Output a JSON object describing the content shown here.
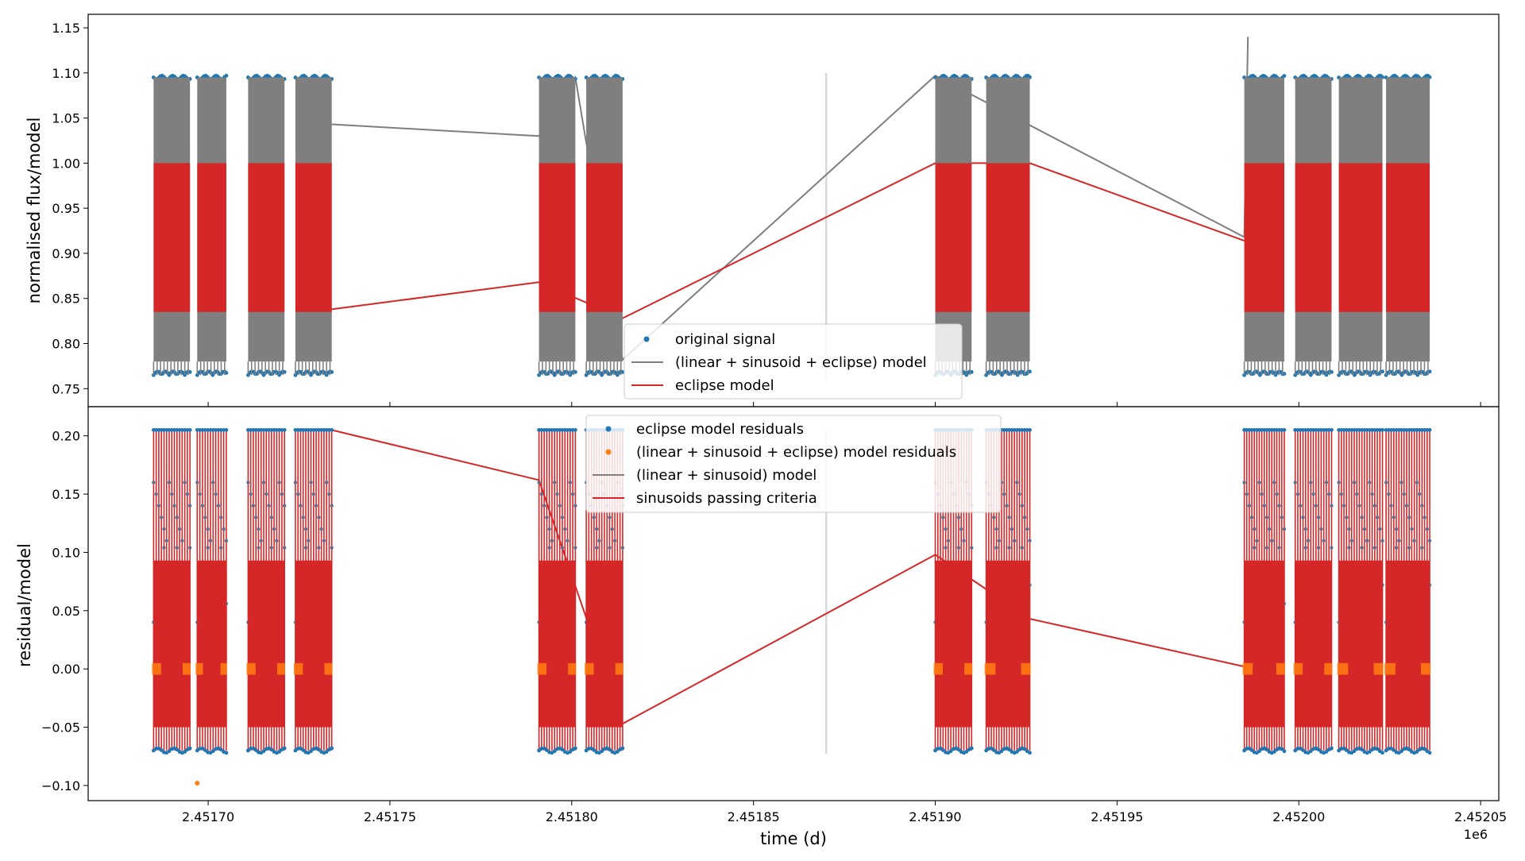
{
  "chart_data": [
    {
      "type": "scatter",
      "ylabel": "normalised flux/model",
      "ylim": [
        0.73,
        1.165
      ],
      "yticks": [
        "0.75",
        "0.80",
        "0.85",
        "0.90",
        "0.95",
        "1.00",
        "1.05",
        "1.10",
        "1.15"
      ],
      "ytick_values": [
        0.75,
        0.8,
        0.85,
        0.9,
        0.95,
        1.0,
        1.05,
        1.1,
        1.15
      ],
      "xlim": [
        2451667,
        2452055
      ],
      "grid": false,
      "legend_position": "bottom-center",
      "series": [
        {
          "name": "original signal",
          "kind": "points",
          "color": "#1f77b4",
          "bands": [
            [
              0.765,
              1.095
            ]
          ]
        },
        {
          "name": "(linear + sinusoid + eclipse) model",
          "kind": "line",
          "color": "#7f7f7f",
          "bands": [
            [
              0.78,
              1.095
            ]
          ]
        },
        {
          "name": "eclipse model",
          "kind": "line",
          "color": "#d62728",
          "bands": [
            [
              0.835,
              1.0
            ]
          ]
        }
      ],
      "vertical_line": {
        "x": 2451870,
        "color": "#d9d9d9"
      }
    },
    {
      "type": "scatter",
      "ylabel": "residual/model",
      "xlabel": "time (d)",
      "x_offset_label": "1e6",
      "ylim": [
        -0.113,
        0.225
      ],
      "yticks": [
        "−0.10",
        "−0.05",
        "0.00",
        "0.05",
        "0.10",
        "0.15",
        "0.20"
      ],
      "ytick_values": [
        -0.1,
        -0.05,
        0.0,
        0.05,
        0.1,
        0.15,
        0.2
      ],
      "xlim": [
        2451667,
        2452055
      ],
      "xticks": [
        "2.45170",
        "2.45175",
        "2.45180",
        "2.45185",
        "2.45190",
        "2.45195",
        "2.45200",
        "2.45205"
      ],
      "xtick_values": [
        2451700,
        2451750,
        2451800,
        2451850,
        2451900,
        2451950,
        2452000,
        2452050
      ],
      "grid": false,
      "legend_position": "top-center",
      "series": [
        {
          "name": "eclipse model residuals",
          "kind": "points",
          "color": "#1f77b4",
          "bands": [
            [
              -0.07,
              0.205
            ]
          ]
        },
        {
          "name": "(linear + sinusoid + eclipse) model residuals",
          "kind": "points",
          "color": "#ff7f0e",
          "bands": [
            [
              -0.005,
              0.005
            ]
          ]
        },
        {
          "name": "(linear + sinusoid) model",
          "kind": "line",
          "color": "#7f7f7f",
          "bands": [
            [
              -0.065,
              0.195
            ]
          ]
        },
        {
          "name": "sinusoids passing criteria",
          "kind": "line",
          "color": "#d62728",
          "bands": [
            [
              -0.07,
              0.205
            ],
            [
              -0.05,
              0.093
            ]
          ]
        }
      ],
      "vertical_line": {
        "x": 2451870,
        "color": "#d9d9d9"
      }
    }
  ],
  "observing_segments": [
    [
      2451685,
      2451695
    ],
    [
      2451697,
      2451705
    ],
    [
      2451711,
      2451721
    ],
    [
      2451724,
      2451734
    ],
    [
      2451791,
      2451801
    ],
    [
      2451804,
      2451814
    ],
    [
      2451900,
      2451910
    ],
    [
      2451914,
      2451926
    ],
    [
      2451985,
      2451996
    ],
    [
      2451999,
      2452009
    ],
    [
      2452011,
      2452023
    ],
    [
      2452024,
      2452036
    ]
  ],
  "connectors_top": {
    "gray": [
      [
        2451734,
        1.043
      ],
      [
        2451791,
        1.03
      ],
      [
        2451801,
        1.095
      ],
      [
        2451814,
        0.782
      ],
      [
        2451900,
        1.097
      ],
      [
        2451926,
        1.042
      ],
      [
        2451985,
        0.918
      ],
      [
        2451986,
        1.14
      ]
    ],
    "red": [
      [
        2451734,
        0.838
      ],
      [
        2451791,
        0.868
      ],
      [
        2451814,
        0.828
      ],
      [
        2451900,
        1.0
      ],
      [
        2451926,
        1.0
      ],
      [
        2451985,
        0.914
      ]
    ]
  },
  "connectors_bottom": {
    "red": [
      [
        2451734,
        0.205
      ],
      [
        2451791,
        0.162
      ],
      [
        2451814,
        -0.047
      ],
      [
        2451900,
        0.098
      ],
      [
        2451926,
        0.043
      ],
      [
        2451985,
        0.002
      ]
    ]
  },
  "outliers": [
    {
      "panel": 1,
      "x": 2451697,
      "y": -0.098,
      "color": "#ff7f0e"
    }
  ]
}
